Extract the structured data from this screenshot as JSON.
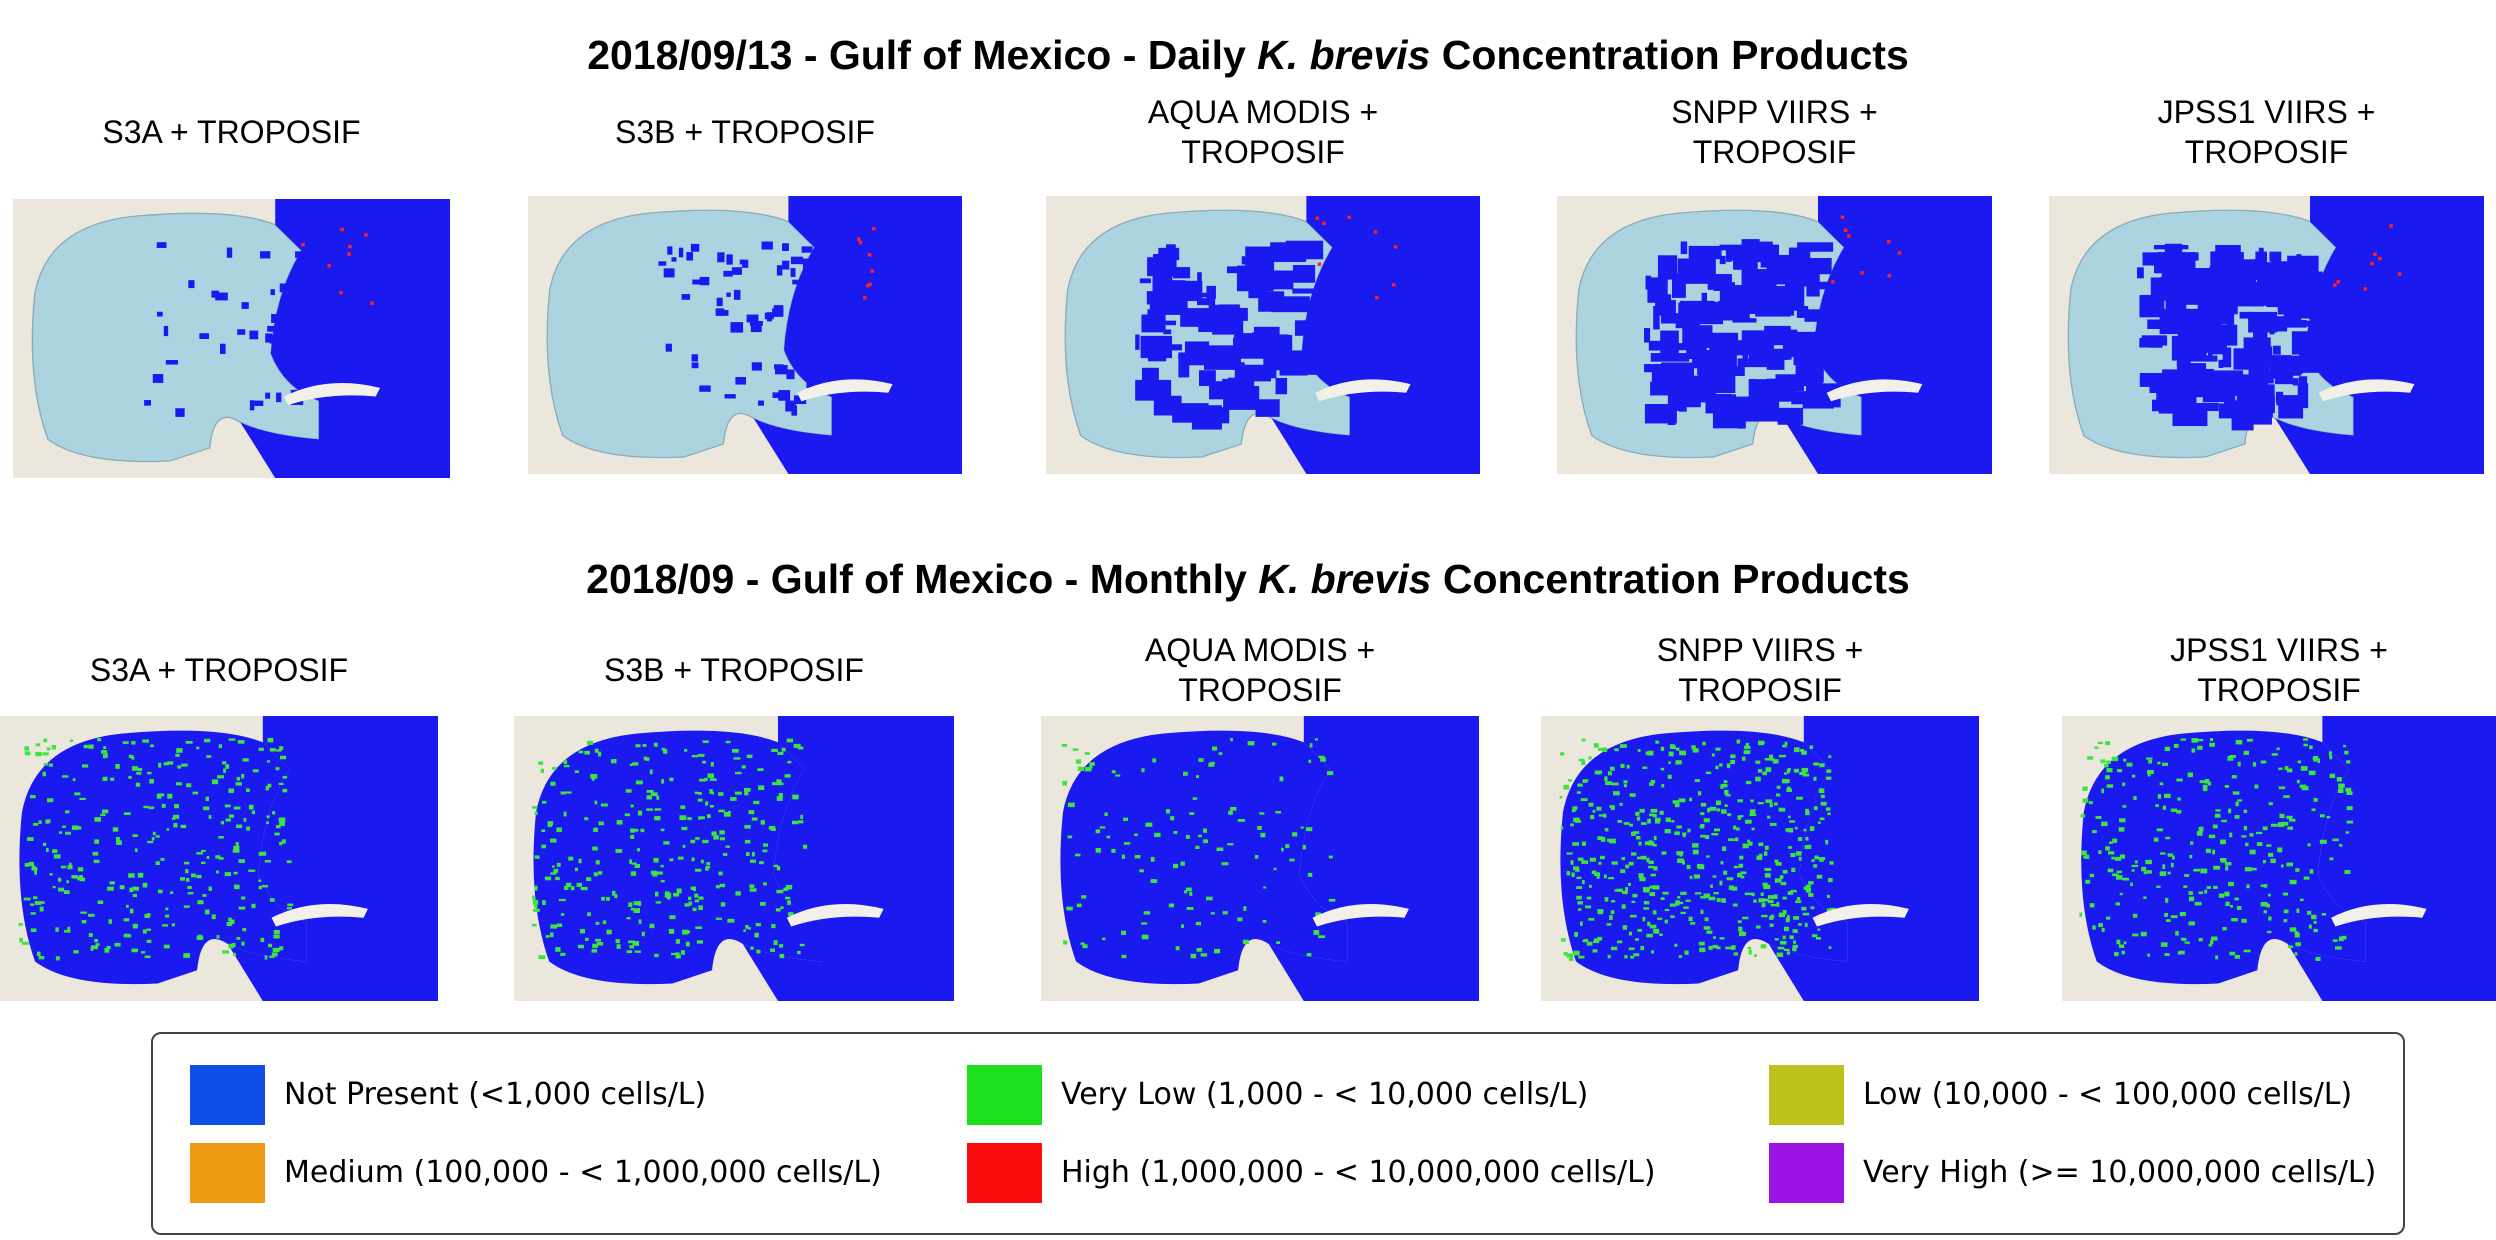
{
  "sections": [
    {
      "title_before": "2018/09/13 - Gulf of Mexico - Daily",
      "title_italic": "K. brevis",
      "title_after": "Concentration Products",
      "panels": [
        {
          "lines": [
            "S3A + TROPOSIF"
          ]
        },
        {
          "lines": [
            "S3B + TROPOSIF"
          ]
        },
        {
          "lines": [
            "AQUA MODIS +",
            "TROPOSIF"
          ]
        },
        {
          "lines": [
            "SNPP VIIRS +",
            "TROPOSIF"
          ]
        },
        {
          "lines": [
            "JPSS1 VIIRS +",
            "TROPOSIF"
          ]
        }
      ]
    },
    {
      "title_before": "2018/09 - Gulf of Mexico - Monthly",
      "title_italic": "K. brevis",
      "title_after": "Concentration Products",
      "panels": [
        {
          "lines": [
            "S3A + TROPOSIF"
          ]
        },
        {
          "lines": [
            "S3B + TROPOSIF"
          ]
        },
        {
          "lines": [
            "AQUA MODIS +",
            "TROPOSIF"
          ]
        },
        {
          "lines": [
            "SNPP VIIRS +",
            "TROPOSIF"
          ]
        },
        {
          "lines": [
            "JPSS1 VIIRS +",
            "TROPOSIF"
          ]
        }
      ]
    }
  ],
  "legend": [
    {
      "label": "Not Present (<1,000 cells/L)",
      "color": "#0f4fe8"
    },
    {
      "label": "Very Low (1,000 - < 10,000 cells/L)",
      "color": "#1de01d"
    },
    {
      "label": "Low (10,000 - < 100,000 cells/L)",
      "color": "#bcc21a"
    },
    {
      "label": "Medium (100,000 - < 1,000,000 cells/L)",
      "color": "#ee9a12"
    },
    {
      "label": "High (1,000,000 - < 10,000,000 cells/L)",
      "color": "#fb0d0d"
    },
    {
      "label": "Very High (>= 10,000,000 cells/L)",
      "color": "#9b12e4"
    }
  ]
}
